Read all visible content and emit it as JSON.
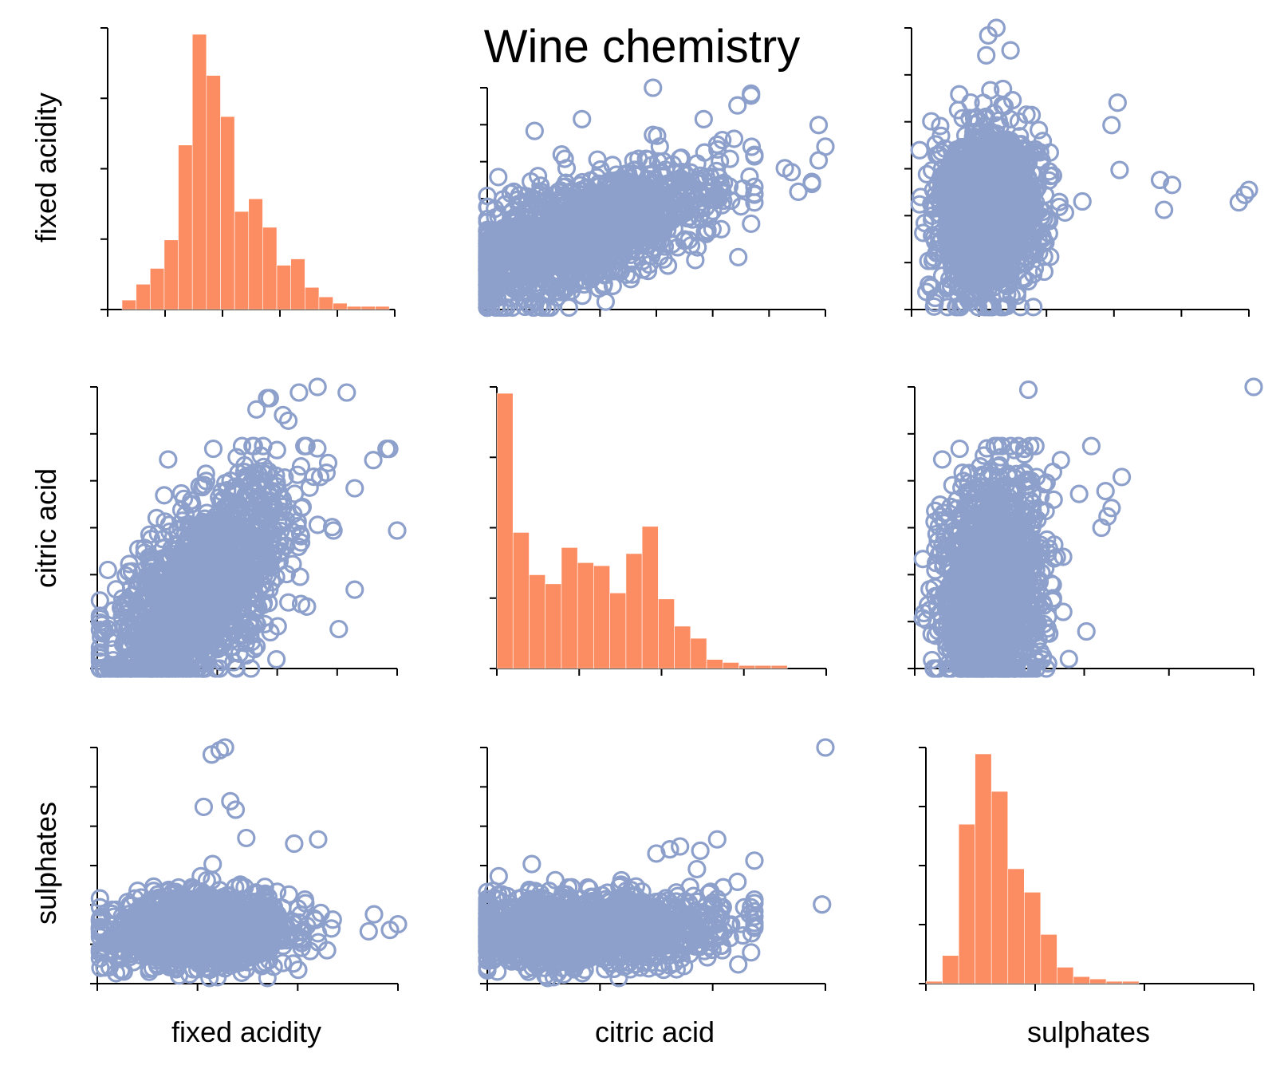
{
  "chart_data": {
    "type": "scatter-matrix",
    "title": "Wine chemistry",
    "variables": [
      "fixed acidity",
      "citric acid",
      "sulphates"
    ],
    "colors": {
      "histogram": "#fc8d62",
      "scatter": "#8da0cb"
    },
    "tick_labels_shown": false,
    "diagonal": [
      {
        "variable": "fixed acidity",
        "type": "bar",
        "values": [
          3,
          8,
          13,
          22,
          52,
          87,
          74,
          61,
          31,
          35,
          26,
          14,
          16,
          7,
          4,
          2,
          1,
          1,
          1,
          0
        ]
      },
      {
        "variable": "citric acid",
        "type": "bar",
        "values": [
          91,
          45,
          31,
          28,
          40,
          35,
          34,
          25,
          38,
          47,
          23,
          14,
          10,
          3,
          2,
          1,
          1,
          1,
          0,
          0
        ]
      },
      {
        "variable": "sulphates",
        "type": "bar",
        "values": [
          1,
          12,
          68,
          98,
          82,
          49,
          39,
          21,
          7,
          3,
          2,
          1,
          1,
          0,
          0,
          0,
          0,
          0,
          0,
          0
        ]
      }
    ],
    "ranges": {
      "fixed acidity": [
        4.6,
        15.9
      ],
      "citric acid": [
        0.0,
        1.0
      ],
      "sulphates": [
        0.33,
        2.0
      ]
    },
    "description": "Off-diagonal panels are scatter plots (open circles) of each pair of variables; diagonal panels are histograms.",
    "outliers": {
      "fa_ca": [
        [
          15.9,
          0.49
        ],
        [
          15.6,
          0.78
        ],
        [
          15.5,
          0.78
        ],
        [
          15.0,
          0.74
        ],
        [
          14.3,
          0.64
        ],
        [
          13.5,
          0.49
        ],
        [
          13.3,
          0.73
        ],
        [
          13.0,
          0.68
        ],
        [
          12.3,
          0.57
        ],
        [
          11.8,
          0.88
        ],
        [
          11.6,
          0.9
        ],
        [
          11.1,
          0.96
        ],
        [
          11.0,
          0.96
        ],
        [
          10.6,
          0.92
        ],
        [
          12.2,
          0.98
        ],
        [
          14.0,
          0.98
        ],
        [
          12.9,
          1.0
        ],
        [
          5.0,
          0.35
        ],
        [
          6.1,
          0.19
        ],
        [
          10.2,
          0.09
        ],
        [
          11.4,
          0.15
        ],
        [
          13.7,
          0.14
        ],
        [
          12.5,
          0.22
        ],
        [
          14.3,
          0.28
        ]
      ],
      "fa_su": [
        [
          15.9,
          0.75
        ],
        [
          15.6,
          0.71
        ],
        [
          15.0,
          0.82
        ],
        [
          14.8,
          0.7
        ],
        [
          13.0,
          0.83
        ],
        [
          13.4,
          0.72
        ],
        [
          12.8,
          0.78
        ],
        [
          12.9,
          1.35
        ],
        [
          12.0,
          1.32
        ],
        [
          9.4,
          2.0
        ],
        [
          9.2,
          1.98
        ],
        [
          8.9,
          1.95
        ],
        [
          9.6,
          1.62
        ],
        [
          9.8,
          1.56
        ],
        [
          8.6,
          1.58
        ],
        [
          10.2,
          1.36
        ],
        [
          7.0,
          0.8
        ]
      ],
      "ca_su": [
        [
          1.0,
          2.0
        ],
        [
          0.99,
          0.89
        ],
        [
          0.78,
          0.87
        ],
        [
          0.76,
          0.87
        ],
        [
          0.79,
          1.2
        ],
        [
          0.68,
          1.35
        ],
        [
          0.57,
          1.3
        ],
        [
          0.63,
          1.27
        ],
        [
          0.69,
          0.87
        ],
        [
          0.67,
          0.88
        ],
        [
          0.74,
          1.05
        ],
        [
          0.62,
          1.14
        ],
        [
          0.54,
          1.28
        ],
        [
          0.5,
          1.25
        ],
        [
          0.58,
          0.82
        ],
        [
          0.61,
          0.95
        ],
        [
          0.63,
          0.7
        ],
        [
          0.68,
          0.93
        ]
      ]
    }
  }
}
